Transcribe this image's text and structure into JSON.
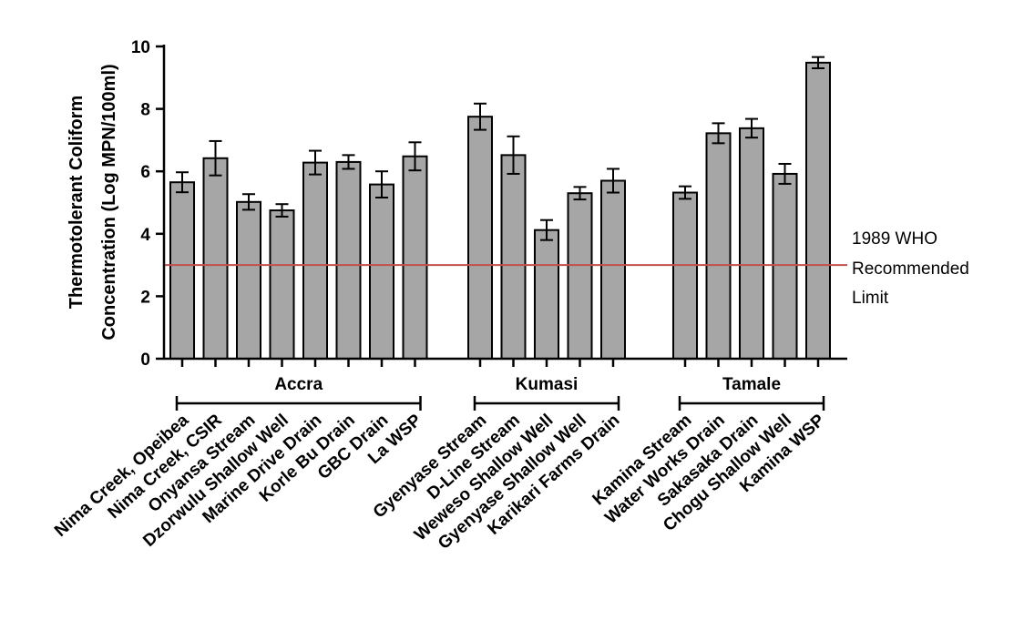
{
  "chart_data": {
    "type": "bar",
    "ylabel_lines": [
      "Thermotolerant Coliform",
      "Concentration (Log MPN/100ml)"
    ],
    "ylim": [
      0,
      10
    ],
    "yticks": [
      0,
      2,
      4,
      6,
      8,
      10
    ],
    "grid": false,
    "bar_color": "#a6a6a6",
    "reference_line": {
      "value": 3,
      "label_lines": [
        "1989 WHO",
        "Recommended",
        "Limit"
      ],
      "color": "#c0504d"
    },
    "groups": [
      {
        "name": "Accra",
        "categories": [
          "Nima Creek, Opeibea",
          "Nima Creek, CSIR",
          "Onyansa Stream",
          "Dzorwulu Shallow Well",
          "Marine Drive Drain",
          "Korle Bu Drain",
          "GBC Drain",
          "La WSP"
        ],
        "values": [
          5.65,
          6.42,
          5.02,
          4.75,
          6.28,
          6.3,
          5.58,
          6.48
        ],
        "errors": [
          0.32,
          0.55,
          0.25,
          0.2,
          0.38,
          0.22,
          0.42,
          0.45
        ]
      },
      {
        "name": "Kumasi",
        "categories": [
          "Gyenyase Stream",
          "D-Line Stream",
          "Weweso Shallow Well",
          "Gyenyase Shallow Well",
          "Karikari Farms Drain"
        ],
        "values": [
          7.75,
          6.52,
          4.12,
          5.3,
          5.7
        ],
        "errors": [
          0.42,
          0.6,
          0.32,
          0.2,
          0.38
        ]
      },
      {
        "name": "Tamale",
        "categories": [
          "Kamina Stream",
          "Water Works Drain",
          "Sakasaka Drain",
          "Chogu Shallow Well",
          "Kamina WSP"
        ],
        "values": [
          5.32,
          7.22,
          7.38,
          5.92,
          9.48
        ],
        "errors": [
          0.2,
          0.32,
          0.3,
          0.32,
          0.18
        ]
      }
    ]
  }
}
